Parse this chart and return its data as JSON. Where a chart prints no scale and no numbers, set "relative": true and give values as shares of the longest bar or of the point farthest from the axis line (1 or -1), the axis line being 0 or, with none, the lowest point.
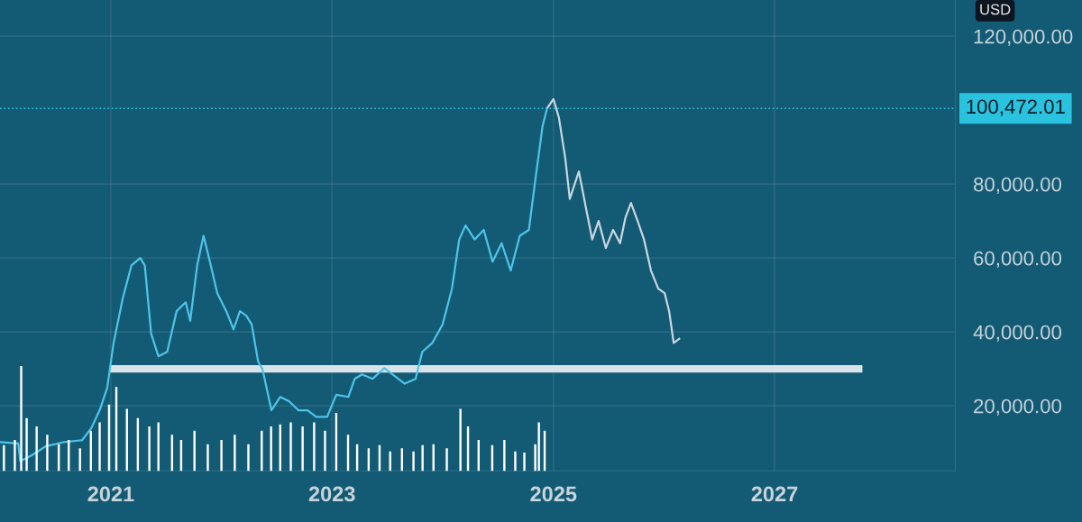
{
  "chart_data": [
    {
      "type": "line",
      "annotations": [
        "USD"
      ],
      "xlim": [
        "2020-01-01",
        "2028-08-20"
      ],
      "xticks": [
        {
          "value": "2021-01-01",
          "label": "2021"
        },
        {
          "value": "2023-01-01",
          "label": "2023"
        },
        {
          "value": "2025-01-01",
          "label": "2025"
        },
        {
          "value": "2027-01-01",
          "label": "2027"
        }
      ],
      "ylim": [
        2400,
        129800
      ],
      "yticks": [
        {
          "value": 20000,
          "label": "20,000.00"
        },
        {
          "value": 40000,
          "label": "40,000.00"
        },
        {
          "value": 60000,
          "label": "60,000.00"
        },
        {
          "value": 80000,
          "label": "80,000.00"
        },
        {
          "value": 120000,
          "label": "120,000.00"
        }
      ],
      "grid": true,
      "ref_lines": [
        {
          "axis": "y",
          "value": 100472.01,
          "label": "100,472.01",
          "color": "#29c3e0",
          "line_style": "dotted"
        }
      ],
      "series": [
        {
          "type": "line",
          "color": "#4fc3e8",
          "x": [
            "2020-01-01",
            "2020-03-01",
            "2020-03-08",
            "2020-04-15",
            "2020-05-30",
            "2020-07-31",
            "2020-09-28",
            "2020-10-28",
            "2020-11-25",
            "2020-12-20",
            "2021-01-10",
            "2021-02-09",
            "2021-03-10",
            "2021-04-08",
            "2021-04-23",
            "2021-05-14",
            "2021-06-07",
            "2021-07-06",
            "2021-08-06",
            "2021-09-05",
            "2021-09-20",
            "2021-10-13",
            "2021-11-03",
            "2021-11-24",
            "2021-12-18",
            "2022-01-17",
            "2022-02-10",
            "2022-03-03",
            "2022-03-24",
            "2022-04-11",
            "2022-05-02",
            "2022-05-17",
            "2022-06-15",
            "2022-07-14",
            "2022-08-13",
            "2022-09-12",
            "2022-10-12",
            "2022-11-10",
            "2022-12-16",
            "2023-01-15",
            "2023-02-24",
            "2023-03-17",
            "2023-04-10",
            "2023-05-15",
            "2023-06-23",
            "2023-07-31",
            "2023-08-29",
            "2023-10-04",
            "2023-10-26",
            "2023-11-28",
            "2024-01-01",
            "2024-02-01",
            "2024-02-25",
            "2024-03-17",
            "2024-04-16",
            "2024-05-16",
            "2024-06-14",
            "2024-07-14",
            "2024-08-13",
            "2024-09-12",
            "2024-10-12",
            "2024-11-02",
            "2024-11-26",
            "2024-12-11"
          ],
          "values": [
            10200,
            9800,
            5000,
            6600,
            9000,
            10200,
            10700,
            13900,
            18800,
            24900,
            37000,
            49000,
            58000,
            60000,
            58000,
            39500,
            33400,
            34600,
            45600,
            48000,
            43000,
            58000,
            66000,
            59000,
            50500,
            45600,
            40700,
            45600,
            44400,
            42000,
            32000,
            29800,
            18800,
            22400,
            21200,
            18800,
            18800,
            17000,
            17000,
            23000,
            22400,
            27300,
            28500,
            27300,
            30200,
            27800,
            26000,
            27300,
            34600,
            37000,
            42000,
            51700,
            65000,
            68800,
            65000,
            67600,
            59000,
            64000,
            56600,
            66000,
            67600,
            81000,
            95600,
            100500
          ]
        },
        {
          "type": "line",
          "color": "#c9d6de",
          "x": [
            "2024-12-11",
            "2025-01-01",
            "2025-01-19",
            "2025-02-09",
            "2025-02-24",
            "2025-03-26",
            "2025-04-18",
            "2025-05-09",
            "2025-05-30",
            "2025-06-23",
            "2025-07-17",
            "2025-08-09",
            "2025-08-27",
            "2025-09-14",
            "2025-10-06",
            "2025-10-27",
            "2025-11-19",
            "2025-12-13",
            "2026-01-03",
            "2026-01-18",
            "2026-02-02",
            "2026-02-23"
          ],
          "values": [
            100500,
            103000,
            98000,
            87000,
            76000,
            83400,
            73700,
            65000,
            70000,
            62700,
            67600,
            64000,
            71000,
            74900,
            70000,
            65000,
            56600,
            51700,
            50500,
            45600,
            37000,
            38300
          ]
        },
        {
          "type": "line",
          "color": "#d9e3ea",
          "x": [
            "2020-12-28",
            "2027-10-18"
          ],
          "values": [
            30000,
            30000
          ]
        }
      ]
    },
    {
      "type": "bar",
      "relative": true,
      "color": "#8b9db0",
      "tick_labels": false,
      "xlim": [
        "2020-01-01",
        "2028-08-20"
      ],
      "x": [
        "2020-01-14",
        "2020-02-19",
        "2020-03-11",
        "2020-03-29",
        "2020-05-01",
        "2020-06-05",
        "2020-07-13",
        "2020-08-15",
        "2020-09-21",
        "2020-10-27",
        "2020-11-25",
        "2020-12-26",
        "2021-01-19",
        "2021-02-23",
        "2021-03-31",
        "2021-05-08",
        "2021-06-07",
        "2021-07-22",
        "2021-08-21",
        "2021-10-04",
        "2021-11-17",
        "2022-01-01",
        "2022-02-14",
        "2022-03-31",
        "2022-05-14",
        "2022-06-14",
        "2022-07-14",
        "2022-08-18",
        "2022-09-26",
        "2022-11-03",
        "2022-12-09",
        "2023-01-15",
        "2023-02-23",
        "2023-03-25",
        "2023-05-02",
        "2023-06-07",
        "2023-07-12",
        "2023-08-20",
        "2023-09-27",
        "2023-10-27",
        "2023-12-02",
        "2024-01-15",
        "2024-02-29",
        "2024-03-25",
        "2024-04-29",
        "2024-06-13",
        "2024-07-23",
        "2024-08-28",
        "2024-09-27",
        "2024-11-02",
        "2024-11-14",
        "2024-12-03"
      ],
      "values": [
        0.24,
        0.29,
        1.0,
        0.5,
        0.42,
        0.34,
        0.25,
        0.29,
        0.21,
        0.38,
        0.46,
        0.63,
        0.8,
        0.59,
        0.5,
        0.42,
        0.46,
        0.34,
        0.29,
        0.38,
        0.25,
        0.29,
        0.34,
        0.25,
        0.38,
        0.42,
        0.44,
        0.46,
        0.42,
        0.46,
        0.38,
        0.55,
        0.34,
        0.25,
        0.21,
        0.24,
        0.18,
        0.21,
        0.18,
        0.24,
        0.25,
        0.21,
        0.59,
        0.42,
        0.29,
        0.24,
        0.29,
        0.18,
        0.17,
        0.25,
        0.46,
        0.38
      ]
    }
  ]
}
